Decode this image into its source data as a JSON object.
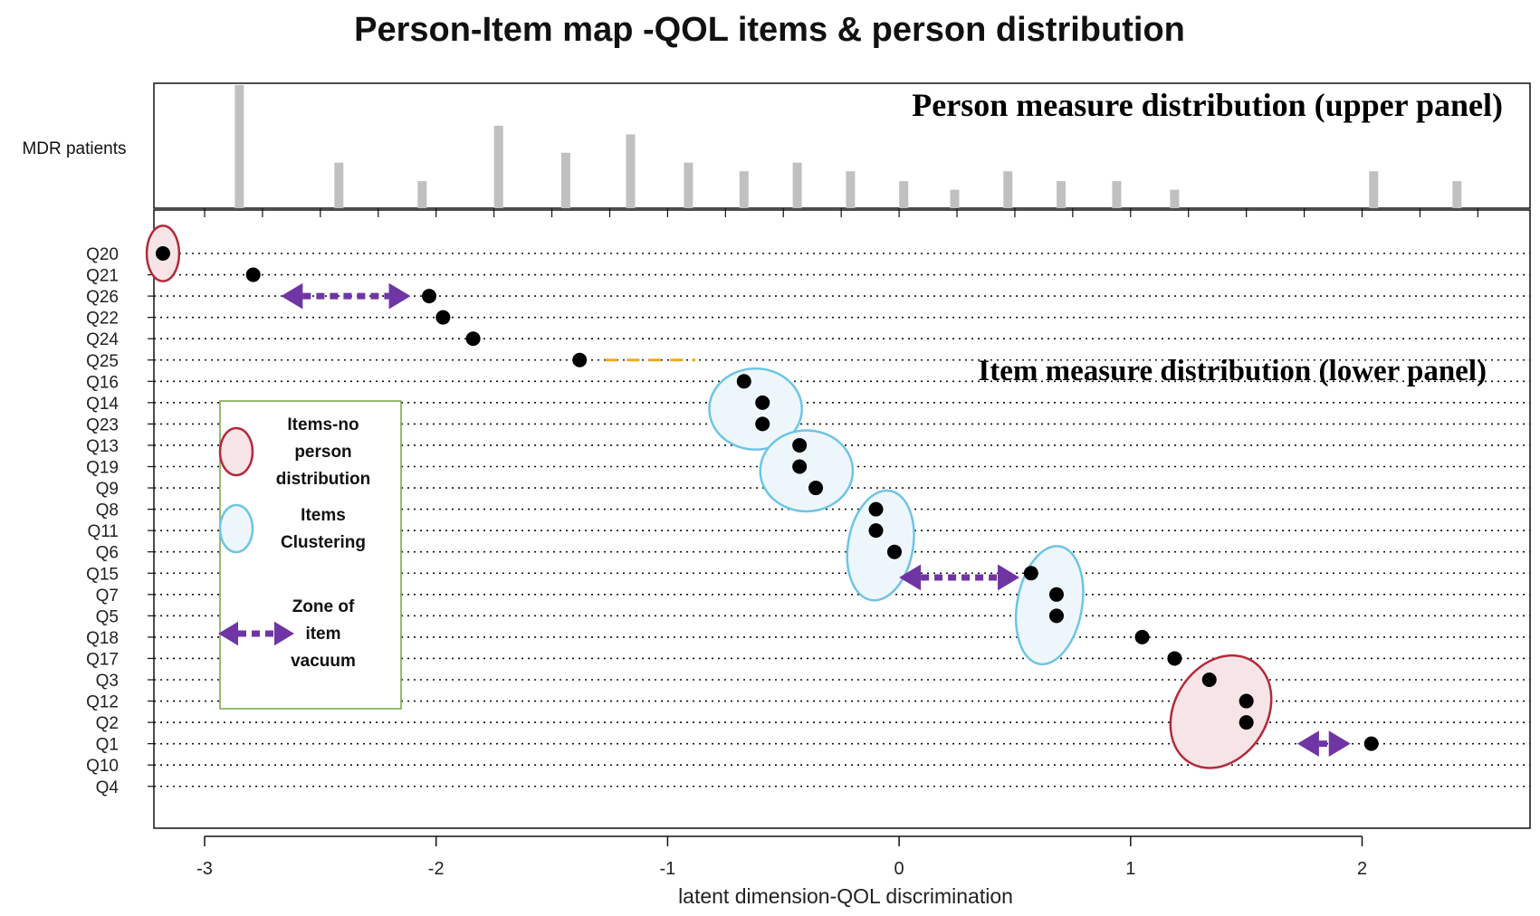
{
  "chart_data": {
    "type": "scatter",
    "title": "Person-Item map -QOL items & person distribution",
    "xlabel": "latent dimension-QOL discrimination",
    "xlim": [
      -3.22,
      2.72
    ],
    "x_ticks": [
      -3,
      -2,
      -1,
      0,
      1,
      2
    ],
    "upper_panel": {
      "label": "MDR patients",
      "annotation": "Person measure distribution (upper panel)",
      "type": "bar",
      "bars": [
        {
          "x": -2.85,
          "h": 1.0
        },
        {
          "x": -2.42,
          "h": 0.37
        },
        {
          "x": -2.06,
          "h": 0.22
        },
        {
          "x": -1.73,
          "h": 0.67
        },
        {
          "x": -1.44,
          "h": 0.45
        },
        {
          "x": -1.16,
          "h": 0.6
        },
        {
          "x": -0.91,
          "h": 0.37
        },
        {
          "x": -0.67,
          "h": 0.3
        },
        {
          "x": -0.44,
          "h": 0.37
        },
        {
          "x": -0.21,
          "h": 0.3
        },
        {
          "x": 0.02,
          "h": 0.22
        },
        {
          "x": 0.24,
          "h": 0.15
        },
        {
          "x": 0.47,
          "h": 0.3
        },
        {
          "x": 0.7,
          "h": 0.22
        },
        {
          "x": 0.94,
          "h": 0.22
        },
        {
          "x": 1.19,
          "h": 0.15
        },
        {
          "x": 2.05,
          "h": 0.3
        },
        {
          "x": 2.41,
          "h": 0.22
        }
      ]
    },
    "lower_panel": {
      "annotation": "Item measure distribution (lower panel)",
      "items": [
        {
          "name": "Q20",
          "x": -3.18
        },
        {
          "name": "Q21",
          "x": -2.79
        },
        {
          "name": "Q26",
          "x": -2.03
        },
        {
          "name": "Q22",
          "x": -1.97
        },
        {
          "name": "Q24",
          "x": -1.84
        },
        {
          "name": "Q25",
          "x": -1.38
        },
        {
          "name": "Q16",
          "x": -0.67
        },
        {
          "name": "Q14",
          "x": -0.59
        },
        {
          "name": "Q23",
          "x": -0.59
        },
        {
          "name": "Q13",
          "x": -0.43
        },
        {
          "name": "Q19",
          "x": -0.43
        },
        {
          "name": "Q9",
          "x": -0.36
        },
        {
          "name": "Q8",
          "x": -0.1
        },
        {
          "name": "Q11",
          "x": -0.1
        },
        {
          "name": "Q6",
          "x": -0.02
        },
        {
          "name": "Q15",
          "x": 0.57
        },
        {
          "name": "Q7",
          "x": 0.68
        },
        {
          "name": "Q5",
          "x": 0.68
        },
        {
          "name": "Q18",
          "x": 1.05
        },
        {
          "name": "Q17",
          "x": 1.19
        },
        {
          "name": "Q3",
          "x": 1.34
        },
        {
          "name": "Q12",
          "x": 1.5
        },
        {
          "name": "Q2",
          "x": 1.5
        },
        {
          "name": "Q1",
          "x": 2.04
        },
        {
          "name": "Q10",
          "x": null
        },
        {
          "name": "Q4",
          "x": null
        }
      ]
    },
    "highlights": {
      "no_person_distribution": [
        {
          "cx": -3.18,
          "row": 0,
          "rx": 0.07,
          "ry": 1.3
        },
        {
          "cx": 1.39,
          "row": 21.5,
          "rx": 0.2,
          "ry": 2.8
        }
      ],
      "clustering": [
        {
          "cx": -0.62,
          "row": 7.3,
          "rx": 0.2,
          "ry": 1.9
        },
        {
          "cx": -0.4,
          "row": 10.2,
          "rx": 0.2,
          "ry": 1.9
        },
        {
          "cx": -0.08,
          "row": 13.7,
          "rx": 0.14,
          "ry": 2.6
        },
        {
          "cx": 0.65,
          "row": 16.5,
          "rx": 0.14,
          "ry": 2.8
        }
      ],
      "vacuum_zones": [
        {
          "x1": -2.67,
          "x2": -2.11,
          "row": 2
        },
        {
          "x1": 0.0,
          "x2": 0.52,
          "row": 15.2
        },
        {
          "x1": 1.72,
          "x2": 1.95,
          "row": 23
        }
      ],
      "gap_dash": {
        "x1": -1.27,
        "x2": -0.88,
        "row": 5
      }
    },
    "legend": {
      "location": "left-center",
      "entries": [
        {
          "label_lines": [
            "Items-no",
            "person",
            "distribution"
          ],
          "symbol": "red-ellipse"
        },
        {
          "label_lines": [
            "Items",
            "Clustering"
          ],
          "symbol": "blue-ellipse"
        },
        {
          "label_lines": [
            "Zone of",
            "item",
            "vacuum"
          ],
          "symbol": "purple-double-arrow"
        }
      ]
    },
    "colors": {
      "bars": "#c0c0c0",
      "points": "#000000",
      "no_person_stroke": "#b22a3a",
      "no_person_fill": "#f6e4e6",
      "cluster_stroke": "#6ec4e6",
      "cluster_fill": "#edf7fb",
      "vacuum_arrow": "#6f35a4",
      "gap_dash": "#f2a81e",
      "legend_border": "#76a443"
    }
  }
}
